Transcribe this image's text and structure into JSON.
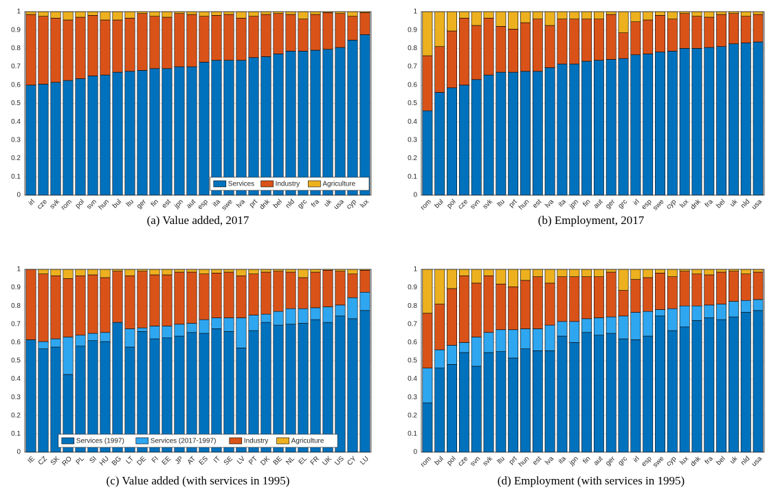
{
  "chart_data": [
    {
      "type": "stacked_bar",
      "caption": "(a) Value added, 2017",
      "categories": [
        "irl",
        "cze",
        "svk",
        "rom",
        "pol",
        "svn",
        "hun",
        "bul",
        "ltu",
        "ger",
        "fin",
        "est",
        "jpn",
        "aut",
        "esp",
        "ita",
        "swe",
        "lva",
        "prt",
        "dnk",
        "bel",
        "nld",
        "grc",
        "fra",
        "uk",
        "usa",
        "cyp",
        "lux"
      ],
      "series": [
        {
          "name": "Services",
          "color": "#0072BD",
          "values": [
            0.6,
            0.605,
            0.615,
            0.625,
            0.635,
            0.65,
            0.655,
            0.67,
            0.675,
            0.68,
            0.69,
            0.69,
            0.7,
            0.7,
            0.725,
            0.735,
            0.735,
            0.735,
            0.75,
            0.755,
            0.77,
            0.785,
            0.785,
            0.79,
            0.795,
            0.805,
            0.845,
            0.875
          ]
        },
        {
          "name": "Industry",
          "color": "#D95319",
          "values": [
            0.385,
            0.37,
            0.35,
            0.33,
            0.335,
            0.33,
            0.3,
            0.285,
            0.29,
            0.31,
            0.285,
            0.28,
            0.29,
            0.285,
            0.25,
            0.245,
            0.25,
            0.23,
            0.225,
            0.23,
            0.22,
            0.2,
            0.175,
            0.195,
            0.2,
            0.185,
            0.13,
            0.12
          ]
        },
        {
          "name": "Agriculture",
          "color": "#EDB120",
          "values": [
            0.015,
            0.025,
            0.035,
            0.045,
            0.03,
            0.02,
            0.045,
            0.045,
            0.035,
            0.01,
            0.025,
            0.03,
            0.01,
            0.015,
            0.025,
            0.02,
            0.015,
            0.035,
            0.025,
            0.015,
            0.01,
            0.015,
            0.04,
            0.015,
            0.005,
            0.01,
            0.025,
            0.005
          ]
        }
      ],
      "ylim": [
        0,
        1
      ],
      "yticks": [
        0,
        0.1,
        0.2,
        0.3,
        0.4,
        0.5,
        0.6,
        0.7,
        0.8,
        0.9,
        1
      ],
      "grid": true,
      "legend": "southeast"
    },
    {
      "type": "stacked_bar",
      "caption": "(b) Employment, 2017",
      "categories": [
        "rom",
        "bul",
        "pol",
        "cze",
        "svn",
        "svk",
        "ltu",
        "prt",
        "hun",
        "est",
        "lva",
        "ita",
        "jpn",
        "fin",
        "aut",
        "ger",
        "grc",
        "irl",
        "esp",
        "swe",
        "cyp",
        "lux",
        "dnk",
        "fra",
        "bel",
        "uk",
        "nld",
        "usa"
      ],
      "series": [
        {
          "color": "#0072BD",
          "values": [
            0.46,
            0.56,
            0.585,
            0.6,
            0.63,
            0.655,
            0.67,
            0.67,
            0.675,
            0.675,
            0.695,
            0.715,
            0.715,
            0.73,
            0.735,
            0.74,
            0.745,
            0.765,
            0.77,
            0.78,
            0.785,
            0.8,
            0.8,
            0.805,
            0.81,
            0.825,
            0.83,
            0.835
          ]
        },
        {
          "color": "#D95319",
          "values": [
            0.3,
            0.25,
            0.31,
            0.365,
            0.295,
            0.31,
            0.25,
            0.235,
            0.265,
            0.285,
            0.23,
            0.245,
            0.245,
            0.23,
            0.225,
            0.245,
            0.14,
            0.18,
            0.185,
            0.2,
            0.175,
            0.19,
            0.175,
            0.165,
            0.175,
            0.165,
            0.145,
            0.15
          ]
        },
        {
          "color": "#EDB120",
          "values": [
            0.24,
            0.19,
            0.105,
            0.035,
            0.075,
            0.035,
            0.08,
            0.095,
            0.06,
            0.04,
            0.075,
            0.04,
            0.04,
            0.04,
            0.04,
            0.015,
            0.115,
            0.055,
            0.045,
            0.02,
            0.04,
            0.01,
            0.025,
            0.03,
            0.015,
            0.01,
            0.025,
            0.015
          ]
        }
      ],
      "ylim": [
        0,
        1
      ],
      "yticks": [
        0,
        0.1,
        0.2,
        0.3,
        0.4,
        0.5,
        0.6,
        0.7,
        0.8,
        0.9,
        1
      ],
      "grid": true
    },
    {
      "type": "stacked_bar",
      "caption": "(c) Value added (with services in 1995)",
      "categories": [
        "IE",
        "CZ",
        "SK",
        "RO",
        "PL",
        "SI",
        "HU",
        "BG",
        "LT",
        "DE",
        "FI",
        "EE",
        "JP",
        "AT",
        "ES",
        "IT",
        "SE",
        "LV",
        "PT",
        "DK",
        "BE",
        "NL",
        "EL",
        "FR",
        "UK",
        "US",
        "CY",
        "LU"
      ],
      "series": [
        {
          "name": "Services (1997)",
          "color": "#0072BD",
          "values": [
            0.615,
            0.565,
            0.575,
            0.425,
            0.58,
            0.61,
            0.605,
            0.71,
            0.575,
            0.66,
            0.62,
            0.625,
            0.635,
            0.655,
            0.65,
            0.675,
            0.66,
            0.57,
            0.665,
            0.71,
            0.695,
            0.7,
            0.705,
            0.725,
            0.71,
            0.745,
            0.73,
            0.775
          ]
        },
        {
          "name": "Services (2017-1997)",
          "color": "#2FA6F0",
          "values": [
            0,
            0.04,
            0.045,
            0.205,
            0.06,
            0.04,
            0.05,
            0,
            0.1,
            0.02,
            0.07,
            0.065,
            0.065,
            0.05,
            0.075,
            0.06,
            0.075,
            0.165,
            0.085,
            0.045,
            0.075,
            0.085,
            0.08,
            0.065,
            0.085,
            0.06,
            0.115,
            0.1
          ]
        },
        {
          "name": "Industry",
          "color": "#D95319",
          "values": [
            0.385,
            0.37,
            0.345,
            0.32,
            0.325,
            0.32,
            0.3,
            0.28,
            0.29,
            0.31,
            0.28,
            0.28,
            0.285,
            0.28,
            0.25,
            0.245,
            0.25,
            0.23,
            0.225,
            0.23,
            0.22,
            0.2,
            0.17,
            0.195,
            0.2,
            0.185,
            0.13,
            0.12
          ]
        },
        {
          "name": "Agriculture",
          "color": "#EDB120",
          "values": [
            0,
            0.025,
            0.035,
            0.05,
            0.035,
            0.03,
            0.045,
            0.01,
            0.035,
            0.01,
            0.03,
            0.03,
            0.015,
            0.015,
            0.025,
            0.02,
            0.015,
            0.035,
            0.025,
            0.015,
            0.01,
            0.015,
            0.045,
            0.015,
            0.005,
            0.01,
            0.025,
            0.005
          ]
        }
      ],
      "ylim": [
        0,
        1
      ],
      "yticks": [
        0,
        0.1,
        0.2,
        0.3,
        0.4,
        0.5,
        0.6,
        0.7,
        0.8,
        0.9,
        1
      ],
      "grid": true,
      "legend": "south"
    },
    {
      "type": "stacked_bar",
      "caption": "(d) Employment (with services in 1995)",
      "categories": [
        "rom",
        "bul",
        "pol",
        "cze",
        "svn",
        "svk",
        "ltu",
        "prt",
        "hun",
        "est",
        "lva",
        "ita",
        "jpn",
        "fin",
        "aut",
        "ger",
        "grc",
        "irl",
        "esp",
        "swe",
        "cyp",
        "lux",
        "dnk",
        "fra",
        "bel",
        "uk",
        "nld",
        "usa"
      ],
      "series": [
        {
          "color": "#0072BD",
          "values": [
            0.27,
            0.46,
            0.48,
            0.545,
            0.47,
            0.545,
            0.55,
            0.515,
            0.565,
            0.555,
            0.555,
            0.635,
            0.6,
            0.655,
            0.64,
            0.65,
            0.62,
            0.615,
            0.635,
            0.745,
            0.665,
            0.685,
            0.72,
            0.735,
            0.725,
            0.74,
            0.765,
            0.775
          ]
        },
        {
          "color": "#2FA6F0",
          "values": [
            0.19,
            0.1,
            0.105,
            0.055,
            0.16,
            0.11,
            0.12,
            0.155,
            0.11,
            0.12,
            0.14,
            0.08,
            0.115,
            0.075,
            0.095,
            0.09,
            0.125,
            0.15,
            0.135,
            0.035,
            0.12,
            0.115,
            0.08,
            0.07,
            0.085,
            0.085,
            0.065,
            0.06
          ]
        },
        {
          "color": "#D95319",
          "values": [
            0.3,
            0.25,
            0.31,
            0.365,
            0.295,
            0.31,
            0.25,
            0.235,
            0.265,
            0.285,
            0.23,
            0.245,
            0.245,
            0.23,
            0.225,
            0.245,
            0.14,
            0.18,
            0.185,
            0.2,
            0.175,
            0.19,
            0.175,
            0.165,
            0.175,
            0.165,
            0.145,
            0.15
          ]
        },
        {
          "color": "#EDB120",
          "values": [
            0.24,
            0.19,
            0.105,
            0.035,
            0.075,
            0.035,
            0.08,
            0.095,
            0.06,
            0.04,
            0.075,
            0.04,
            0.04,
            0.04,
            0.04,
            0.015,
            0.115,
            0.055,
            0.045,
            0.02,
            0.04,
            0.01,
            0.025,
            0.03,
            0.015,
            0.01,
            0.025,
            0.015
          ]
        }
      ],
      "ylim": [
        0,
        1
      ],
      "yticks": [
        0,
        0.1,
        0.2,
        0.3,
        0.4,
        0.5,
        0.6,
        0.7,
        0.8,
        0.9,
        1
      ],
      "grid": true
    }
  ]
}
